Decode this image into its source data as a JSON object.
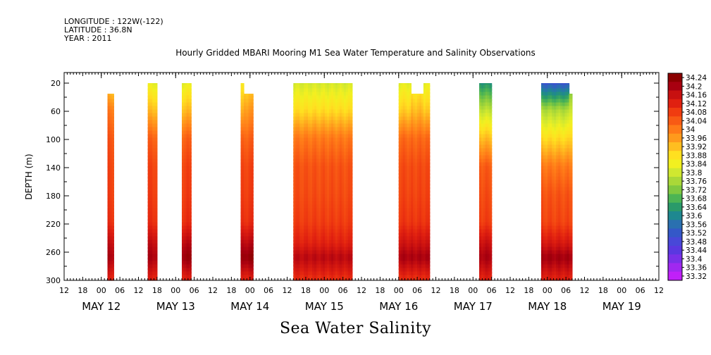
{
  "header": {
    "longitude": "LONGITUDE : 122W(-122)",
    "latitude": "LATITUDE : 36.8N",
    "year": "YEAR : 2011"
  },
  "chart_data": {
    "type": "heatmap",
    "title": "Hourly Gridded MBARI Mooring M1 Sea Water Temperature and Salinity Observations",
    "variable_label": "Sea Water Salinity",
    "ylabel": "DEPTH (m)",
    "xlabel": "",
    "y_range": [
      300,
      5
    ],
    "y_ticks": [
      20,
      60,
      100,
      140,
      180,
      220,
      260,
      300
    ],
    "x_range_hours": [
      -12,
      180
    ],
    "x_time_origin": "MAY 12 00",
    "x_hour_ticks": [
      {
        "h": -12,
        "label": "12"
      },
      {
        "h": -6,
        "label": "18"
      },
      {
        "h": 0,
        "label": "00"
      },
      {
        "h": 6,
        "label": "06"
      },
      {
        "h": 12,
        "label": "12"
      },
      {
        "h": 18,
        "label": "18"
      },
      {
        "h": 24,
        "label": "00"
      },
      {
        "h": 30,
        "label": "06"
      },
      {
        "h": 36,
        "label": "12"
      },
      {
        "h": 42,
        "label": "18"
      },
      {
        "h": 48,
        "label": "00"
      },
      {
        "h": 54,
        "label": "06"
      },
      {
        "h": 60,
        "label": "12"
      },
      {
        "h": 66,
        "label": "18"
      },
      {
        "h": 72,
        "label": "00"
      },
      {
        "h": 78,
        "label": "06"
      },
      {
        "h": 84,
        "label": "12"
      },
      {
        "h": 90,
        "label": "18"
      },
      {
        "h": 96,
        "label": "00"
      },
      {
        "h": 102,
        "label": "06"
      },
      {
        "h": 108,
        "label": "12"
      },
      {
        "h": 114,
        "label": "18"
      },
      {
        "h": 120,
        "label": "00"
      },
      {
        "h": 126,
        "label": "06"
      },
      {
        "h": 132,
        "label": "12"
      },
      {
        "h": 138,
        "label": "18"
      },
      {
        "h": 144,
        "label": "00"
      },
      {
        "h": 150,
        "label": "06"
      },
      {
        "h": 156,
        "label": "12"
      },
      {
        "h": 162,
        "label": "18"
      },
      {
        "h": 168,
        "label": "00"
      },
      {
        "h": 174,
        "label": "06"
      },
      {
        "h": 180,
        "label": "12"
      }
    ],
    "x_day_labels": [
      {
        "h": 0,
        "label": "MAY 12"
      },
      {
        "h": 24,
        "label": "MAY 13"
      },
      {
        "h": 48,
        "label": "MAY 14"
      },
      {
        "h": 72,
        "label": "MAY 15"
      },
      {
        "h": 96,
        "label": "MAY 16"
      },
      {
        "h": 120,
        "label": "MAY 17"
      },
      {
        "h": 144,
        "label": "MAY 18"
      },
      {
        "h": 168,
        "label": "MAY 19"
      }
    ],
    "colorbar": {
      "labels": [
        "34.24",
        "34.2",
        "34.16",
        "34.12",
        "34.08",
        "34.04",
        "34",
        "33.96",
        "33.92",
        "33.88",
        "33.84",
        "33.8",
        "33.76",
        "33.72",
        "33.68",
        "33.64",
        "33.6",
        "33.56",
        "33.52",
        "33.48",
        "33.44",
        "33.4",
        "33.36",
        "33.32"
      ],
      "colors": [
        "#8b0000",
        "#a80010",
        "#c81010",
        "#e02010",
        "#f03c10",
        "#f85a14",
        "#ff7a18",
        "#ff9a1c",
        "#ffbe20",
        "#ffe020",
        "#f2f020",
        "#d0e830",
        "#aad838",
        "#80c840",
        "#4cb454",
        "#2a9a6a",
        "#1e8890",
        "#2a70b0",
        "#3458c8",
        "#4848d8",
        "#5a38e0",
        "#7a30e8",
        "#a028f0",
        "#c020f8"
      ]
    },
    "segments": [
      {
        "start": 2,
        "end": 4,
        "top_depth": 35,
        "profile": [
          33.88,
          34.0,
          34.05,
          34.07,
          34.08,
          34.1,
          34.17,
          34.2,
          34.12
        ]
      },
      {
        "start": 15,
        "end": 18,
        "top_depth": 20,
        "profile": [
          33.82,
          33.92,
          34.03,
          34.07,
          34.08,
          34.1,
          34.17,
          34.2,
          34.12
        ]
      },
      {
        "start": 26,
        "end": 29,
        "top_depth": 20,
        "profile": [
          33.82,
          33.92,
          34.03,
          34.07,
          34.08,
          34.1,
          34.18,
          34.22,
          34.12
        ]
      },
      {
        "start": 45,
        "end": 46,
        "top_depth": 20,
        "profile": [
          33.85,
          33.93,
          34.03,
          34.07,
          34.08,
          34.1,
          34.18,
          34.22,
          34.12
        ]
      },
      {
        "start": 46,
        "end": 49,
        "top_depth": 35,
        "profile": [
          33.88,
          33.96,
          34.03,
          34.07,
          34.08,
          34.1,
          34.18,
          34.23,
          34.12
        ]
      },
      {
        "start": 62,
        "end": 81,
        "top_depth": 20,
        "profile": [
          33.8,
          33.88,
          34.0,
          34.05,
          34.06,
          34.08,
          34.12,
          34.18,
          34.1
        ]
      },
      {
        "start": 96,
        "end": 100,
        "top_depth": 20,
        "profile": [
          33.82,
          33.9,
          34.02,
          34.06,
          34.07,
          34.09,
          34.15,
          34.2,
          34.1
        ]
      },
      {
        "start": 100,
        "end": 104,
        "top_depth": 35,
        "profile": [
          33.84,
          33.92,
          34.02,
          34.06,
          34.07,
          34.09,
          34.15,
          34.2,
          34.1
        ]
      },
      {
        "start": 104,
        "end": 106,
        "top_depth": 20,
        "profile": [
          33.82,
          33.9,
          34.02,
          34.06,
          34.07,
          34.09,
          34.15,
          34.2,
          34.1
        ]
      },
      {
        "start": 122,
        "end": 126,
        "top_depth": 20,
        "profile": [
          33.62,
          33.78,
          33.92,
          34.04,
          34.06,
          34.08,
          34.16,
          34.2,
          34.12
        ]
      },
      {
        "start": 142,
        "end": 151,
        "top_depth": 20,
        "profile": [
          33.5,
          33.76,
          33.88,
          34.0,
          34.05,
          34.07,
          34.14,
          34.21,
          34.12
        ]
      },
      {
        "start": 151,
        "end": 152,
        "top_depth": 35,
        "profile": [
          33.7,
          33.8,
          33.9,
          34.0,
          34.05,
          34.07,
          34.14,
          34.21,
          34.12
        ]
      }
    ],
    "profile_depths": [
      20,
      60,
      100,
      140,
      180,
      220,
      250,
      270,
      300
    ]
  }
}
